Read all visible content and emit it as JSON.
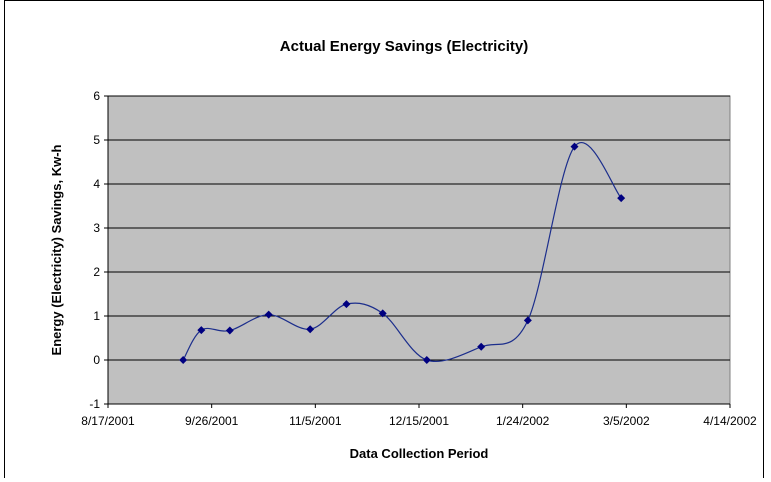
{
  "chart_data": {
    "type": "line",
    "title": "Actual Energy Savings (Electricity)",
    "xlabel": "Data Collection Period",
    "ylabel": "Energy (Electricity) Savings, Kw-h",
    "xlim": [
      "8/17/2001",
      "4/14/2002"
    ],
    "ylim": [
      -1,
      6
    ],
    "x_ticks": [
      "8/17/2001",
      "9/26/2001",
      "11/5/2001",
      "12/15/2001",
      "1/24/2002",
      "3/5/2002",
      "4/14/2002"
    ],
    "y_ticks": [
      "-1",
      "0",
      "1",
      "2",
      "3",
      "4",
      "5",
      "6"
    ],
    "grid": true,
    "smooth": true,
    "colors": {
      "plot_background": "#c0c0c0",
      "line": "#1c2e8c",
      "marker": "#000080"
    },
    "series": [
      {
        "x": [
          "9/15/2001",
          "9/22/2001",
          "10/3/2001",
          "10/18/2001",
          "11/3/2001",
          "11/17/2001",
          "12/1/2001",
          "12/18/2001",
          "1/8/2002",
          "1/26/2002",
          "2/13/2002",
          "3/3/2002"
        ],
        "y": [
          0.0,
          0.68,
          0.67,
          1.03,
          0.7,
          1.27,
          1.06,
          0.0,
          0.3,
          0.9,
          4.85,
          3.68
        ]
      }
    ]
  }
}
